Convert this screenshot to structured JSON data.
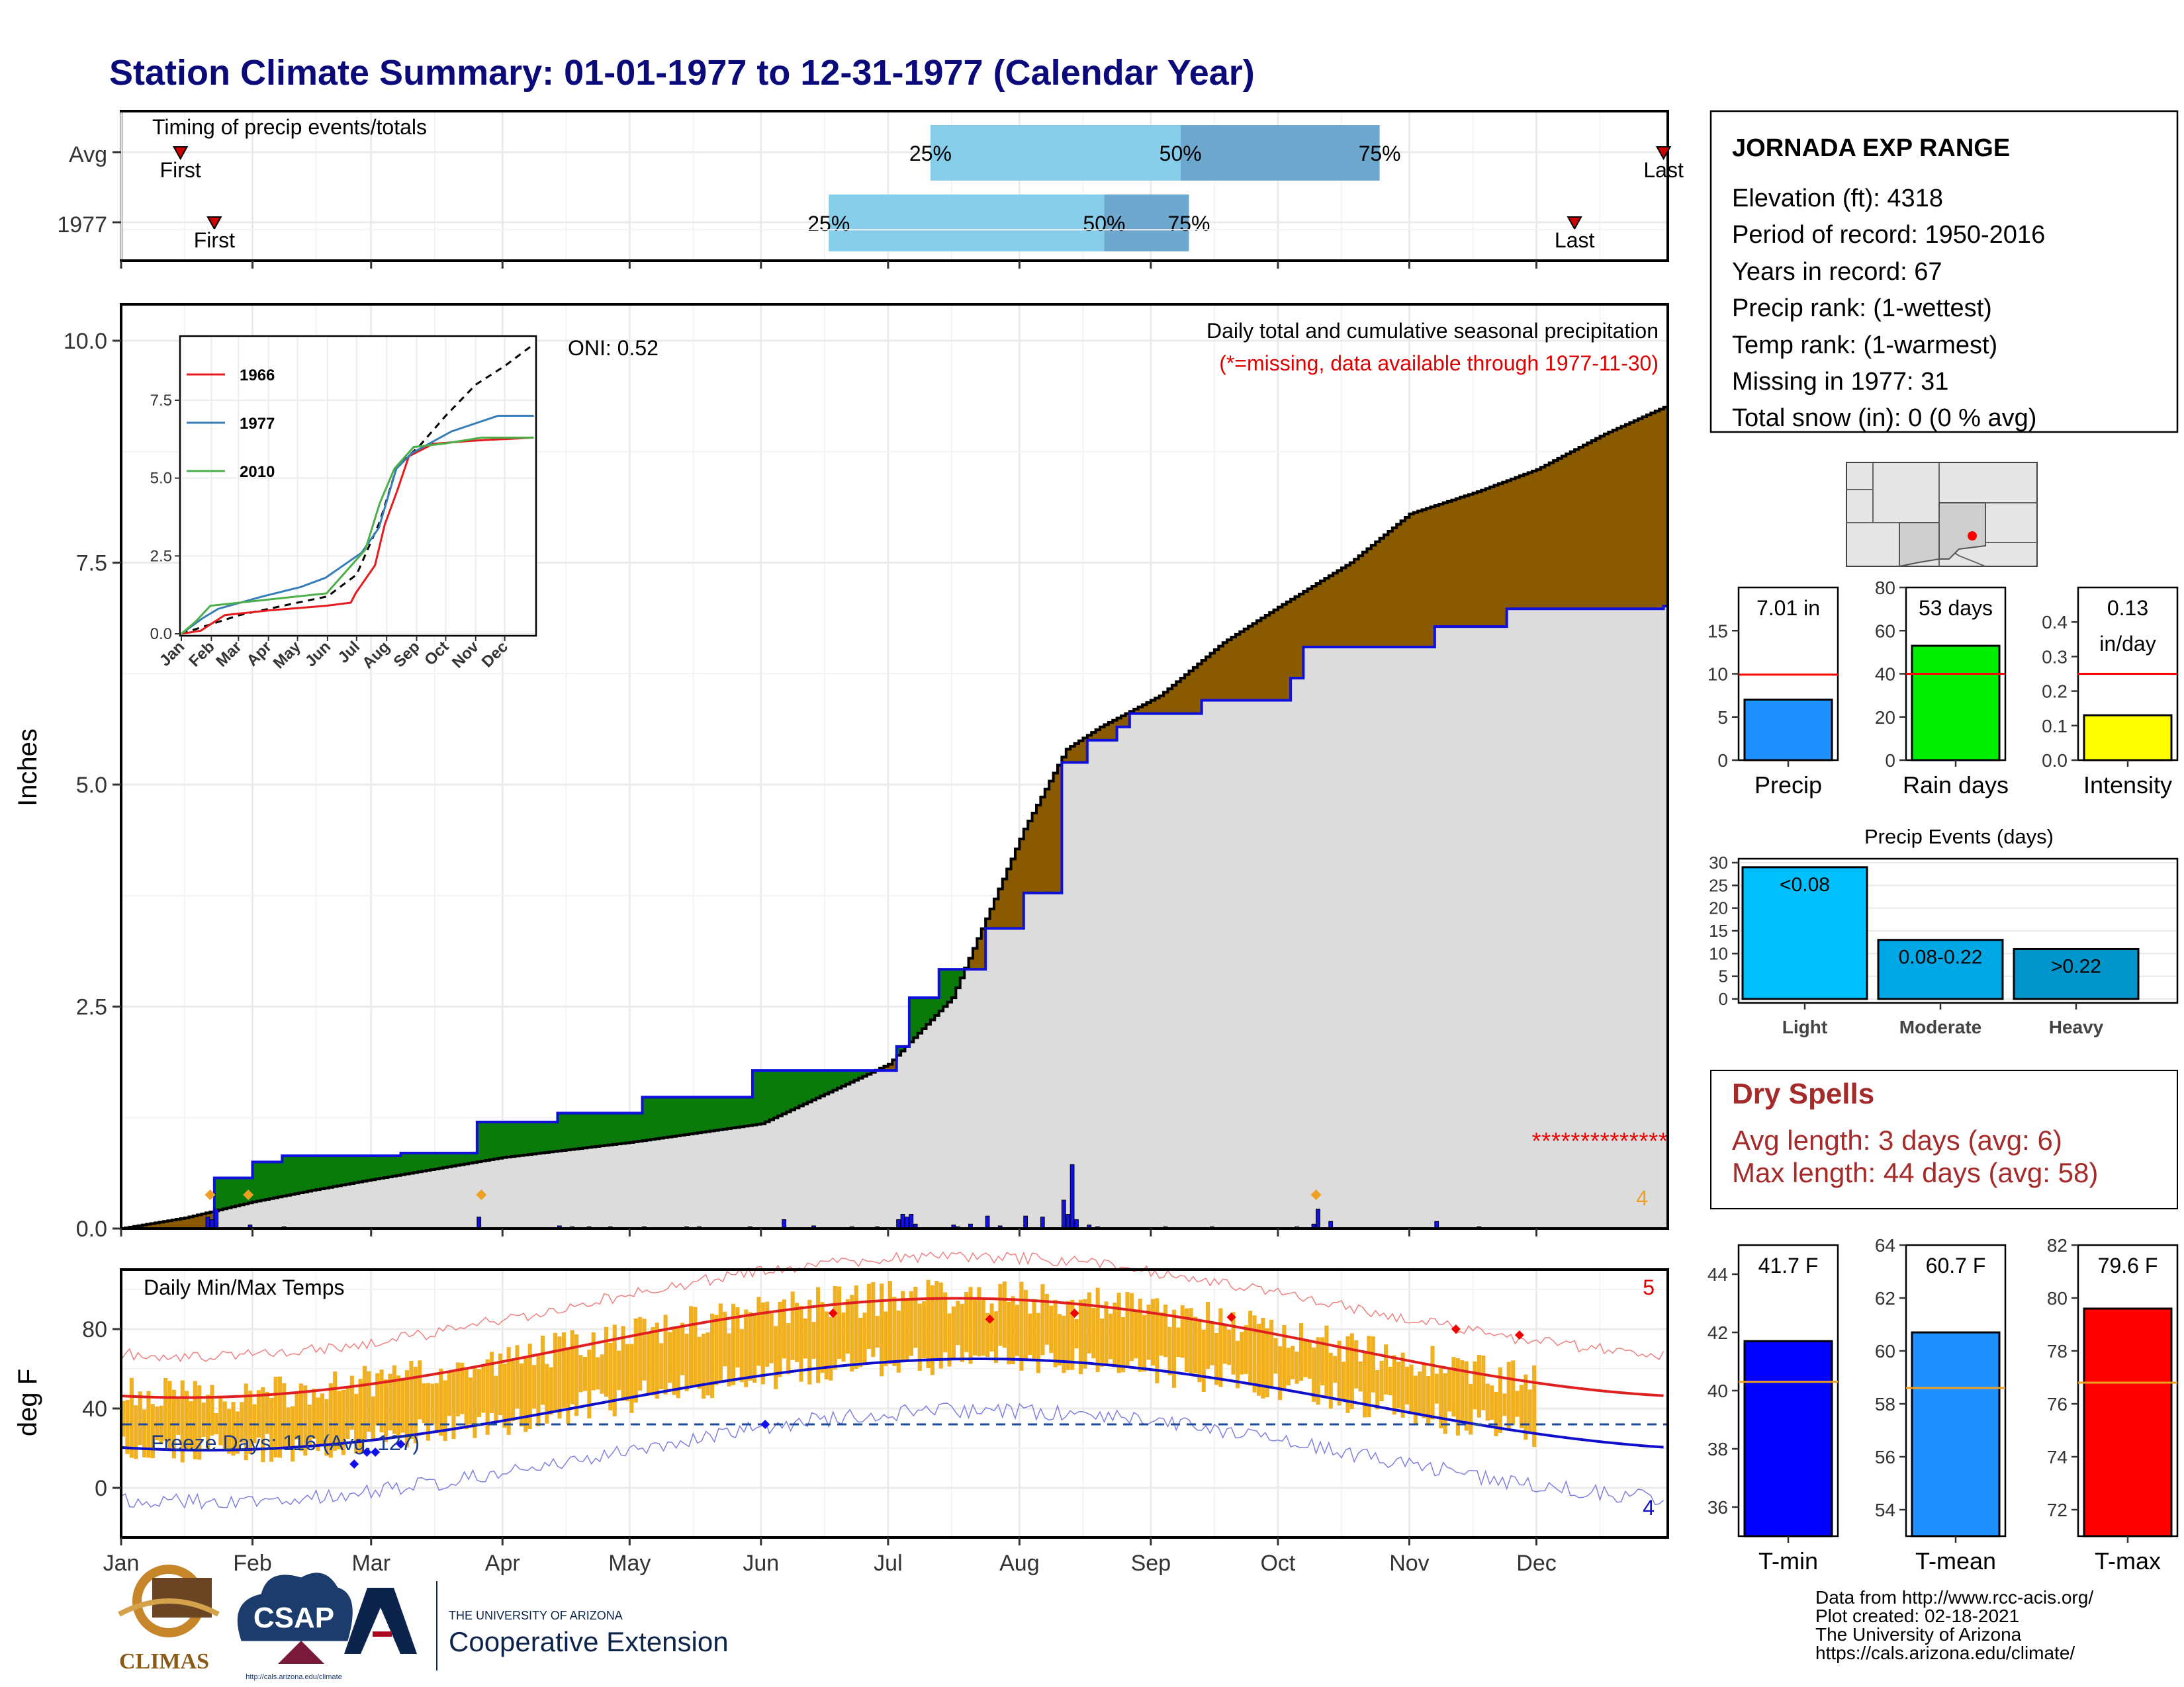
{
  "title": "Station Climate Summary: 01-01-1977 to 12-31-1977 (Calendar Year)",
  "colors": {
    "title": "#0a0a7a",
    "precip_surplus": "#0a7a0a",
    "precip_deficit": "#8a5a00",
    "avg_fill": "#dcdcdc",
    "year_line": "#1010dd",
    "tmax": "#e02020",
    "tmin": "#1010cc",
    "bars_gold": "#f0b020",
    "quartile_light": "#87ceeb",
    "quartile_dark": "#6ea8cf",
    "dry_spell": "#a52a2a",
    "precip_bar": "#1e90ff",
    "raindays_bar": "#00ee00",
    "intensity_bar": "#ffff00",
    "events_bar": "#00bfff",
    "tmin_bar": "#0000ff",
    "tmean_bar": "#1e90ff",
    "tmax_bar": "#ff0000",
    "avg_line": "#ff0000",
    "temp_avg_line": "#f0a020"
  },
  "timing": {
    "label": "Timing of precip events/totals",
    "row_labels": [
      "Avg",
      "1977"
    ],
    "first_label": "First",
    "last_label": "Last",
    "quartile_labels": [
      "25%",
      "50%",
      "75%"
    ],
    "avg": {
      "first_day": 14,
      "q25": 191,
      "q50": 250,
      "q75": 297,
      "last_day": 364
    },
    "year": {
      "first_day": 22,
      "q25": 167,
      "q50": 232,
      "q75": 252,
      "last_day": 343
    }
  },
  "chart_data": [
    {
      "type": "area",
      "name": "precip",
      "ylabel": "Inches",
      "ylim": [
        0,
        10
      ],
      "yticks": [
        "0.0",
        "2.5",
        "5.0",
        "7.5",
        "10.0"
      ],
      "annotation_title": "Daily total and cumulative seasonal precipitation",
      "annotation_missing": "(*=missing, data available through 1977-11-30)",
      "oni": "ONI: 0.52",
      "event_count": "4",
      "avg_cumulative": [
        [
          0,
          0
        ],
        [
          15,
          0.12
        ],
        [
          31,
          0.3
        ],
        [
          45,
          0.43
        ],
        [
          59,
          0.55
        ],
        [
          90,
          0.8
        ],
        [
          120,
          0.97
        ],
        [
          151,
          1.18
        ],
        [
          181,
          1.85
        ],
        [
          196,
          2.6
        ],
        [
          205,
          3.6
        ],
        [
          213,
          4.5
        ],
        [
          223,
          5.4
        ],
        [
          231,
          5.65
        ],
        [
          245,
          6.0
        ],
        [
          260,
          6.6
        ],
        [
          273,
          7.0
        ],
        [
          290,
          7.5
        ],
        [
          304,
          8.05
        ],
        [
          320,
          8.3
        ],
        [
          334,
          8.55
        ],
        [
          350,
          8.95
        ],
        [
          364,
          9.25
        ]
      ],
      "year_cumulative": [
        [
          0,
          0
        ],
        [
          22,
          0.35
        ],
        [
          22,
          0.57
        ],
        [
          31,
          0.57
        ],
        [
          31,
          0.75
        ],
        [
          38,
          0.75
        ],
        [
          38,
          0.82
        ],
        [
          66,
          0.82
        ],
        [
          66,
          0.85
        ],
        [
          84,
          0.85
        ],
        [
          84,
          1.2
        ],
        [
          103,
          1.2
        ],
        [
          103,
          1.3
        ],
        [
          123,
          1.3
        ],
        [
          123,
          1.48
        ],
        [
          149,
          1.48
        ],
        [
          149,
          1.78
        ],
        [
          183,
          1.78
        ],
        [
          183,
          2.05
        ],
        [
          186,
          2.05
        ],
        [
          186,
          2.6
        ],
        [
          193,
          2.6
        ],
        [
          193,
          2.92
        ],
        [
          204,
          2.92
        ],
        [
          204,
          3.38
        ],
        [
          213,
          3.38
        ],
        [
          213,
          3.78
        ],
        [
          222,
          3.78
        ],
        [
          222,
          5.25
        ],
        [
          228,
          5.25
        ],
        [
          228,
          5.5
        ],
        [
          235,
          5.5
        ],
        [
          235,
          5.65
        ],
        [
          238,
          5.65
        ],
        [
          238,
          5.8
        ],
        [
          255,
          5.8
        ],
        [
          255,
          5.95
        ],
        [
          276,
          5.95
        ],
        [
          276,
          6.2
        ],
        [
          279,
          6.2
        ],
        [
          279,
          6.55
        ],
        [
          310,
          6.55
        ],
        [
          310,
          6.78
        ],
        [
          327,
          6.78
        ],
        [
          327,
          6.98
        ],
        [
          364,
          7.01
        ]
      ],
      "daily_precip_days": [
        20,
        21,
        22,
        30,
        38,
        84,
        103,
        106,
        110,
        115,
        123,
        133,
        136,
        148,
        156,
        163,
        172,
        178,
        183,
        184,
        185,
        186,
        187,
        196,
        197,
        200,
        204,
        207,
        213,
        217,
        222,
        223,
        224,
        225,
        228,
        230,
        246,
        257,
        277,
        281,
        282,
        285,
        310,
        320
      ],
      "daily_precip_vals": [
        0.13,
        0.1,
        0.22,
        0.04,
        0.02,
        0.13,
        0.03,
        0.02,
        0.02,
        0.02,
        0.02,
        0.02,
        0.02,
        0.02,
        0.1,
        0.03,
        0.02,
        0.02,
        0.1,
        0.16,
        0.13,
        0.16,
        0.05,
        0.04,
        0.02,
        0.05,
        0.14,
        0.03,
        0.14,
        0.13,
        0.32,
        0.16,
        0.72,
        0.1,
        0.04,
        0.02,
        0.02,
        0.02,
        0.02,
        0.05,
        0.22,
        0.08,
        0.08,
        0.02
      ],
      "event_markers": [
        21,
        30,
        85,
        282
      ],
      "missing_start": 334,
      "missing_value": 1.0
    },
    {
      "type": "line",
      "name": "inset-cumulative",
      "series": [
        {
          "name": "1966",
          "color": "#e41a1c"
        },
        {
          "name": "1977",
          "color": "#377eb8"
        },
        {
          "name": "2010",
          "color": "#4daf4a"
        }
      ],
      "yticks": [
        "0.0",
        "2.5",
        "5.0",
        "7.5"
      ],
      "months": [
        "Jan",
        "Feb",
        "Mar",
        "Apr",
        "May",
        "Jun",
        "Jul",
        "Aug",
        "Sep",
        "Oct",
        "Nov",
        "Dec"
      ]
    },
    {
      "type": "bar",
      "name": "daily-temps",
      "label": "Daily Min/Max Temps",
      "ylabel": "deg F",
      "yticks": [
        "0",
        "40",
        "80"
      ],
      "ylim": [
        -25,
        110
      ],
      "freeze_label": "Freeze Days: 116 (Avg: 127)",
      "freeze_line": 32,
      "record_high_count": "5",
      "record_low_count": "4",
      "months": [
        "Jan",
        "Feb",
        "Mar",
        "Apr",
        "May",
        "Jun",
        "Jul",
        "Aug",
        "Sep",
        "Oct",
        "Nov",
        "Dec"
      ]
    },
    {
      "type": "bar",
      "name": "precip-summary",
      "value_label": "7.01 in",
      "value": 7.01,
      "avg": 9.9,
      "ylim": [
        0,
        20
      ],
      "yticks": [
        "0",
        "5",
        "10",
        "15"
      ],
      "xlabel": "Precip"
    },
    {
      "type": "bar",
      "name": "raindays-summary",
      "value_label": "53 days",
      "value": 53,
      "avg": 40,
      "ylim": [
        0,
        80
      ],
      "yticks": [
        "0",
        "20",
        "40",
        "60",
        "80"
      ],
      "xlabel": "Rain days"
    },
    {
      "type": "bar",
      "name": "intensity-summary",
      "value_label": "0.13 in/day",
      "value_label_1": "0.13",
      "value_label_2": "in/day",
      "value": 0.13,
      "avg": 0.25,
      "ylim": [
        0,
        0.5
      ],
      "yticks": [
        "0.0",
        "0.1",
        "0.2",
        "0.3",
        "0.4"
      ],
      "xlabel": "Intensity"
    },
    {
      "type": "bar",
      "name": "precip-events",
      "title": "Precip Events (days)",
      "categories": [
        "Light",
        "Moderate",
        "Heavy"
      ],
      "bar_labels": [
        "<0.08",
        "0.08-0.22",
        ">0.22"
      ],
      "values": [
        29,
        13,
        11
      ],
      "ylim": [
        0,
        30
      ],
      "yticks": [
        "0",
        "5",
        "10",
        "15",
        "20",
        "25",
        "30"
      ]
    },
    {
      "type": "bar",
      "name": "tmin-summary",
      "value_label": "41.7 F",
      "value": 41.7,
      "avg": 40.3,
      "ylim": [
        35,
        45
      ],
      "yticks": [
        "36",
        "38",
        "40",
        "42",
        "44"
      ],
      "xlabel": "T-min"
    },
    {
      "type": "bar",
      "name": "tmean-summary",
      "value_label": "60.7 F",
      "value": 60.7,
      "avg": 58.6,
      "ylim": [
        53,
        64
      ],
      "yticks": [
        "54",
        "56",
        "58",
        "60",
        "62",
        "64"
      ],
      "xlabel": "T-mean"
    },
    {
      "type": "bar",
      "name": "tmax-summary",
      "value_label": "79.6 F",
      "value": 79.6,
      "avg": 76.8,
      "ylim": [
        71,
        82
      ],
      "yticks": [
        "72",
        "74",
        "76",
        "78",
        "80",
        "82"
      ],
      "xlabel": "T-max"
    }
  ],
  "station": {
    "name": "JORNADA EXP RANGE",
    "lines": [
      "Elevation (ft): 4318",
      "Period of record: 1950-2016",
      "Years in record: 67",
      "Precip rank:  (1-wettest)",
      "Temp rank:  (1-warmest)",
      "Missing in 1977: 31",
      "Total snow (in): 0 (0 % avg)"
    ]
  },
  "dry_spells": {
    "title": "Dry Spells",
    "avg_length": "Avg length: 3 days (avg: 6)",
    "max_length": "Max length: 44 days (avg: 58)"
  },
  "footer": {
    "credits": [
      "Data from http://www.rcc-acis.org/",
      "Plot created: 02-18-2021",
      "The University of Arizona",
      "https://cals.arizona.edu/climate/"
    ],
    "climas": "CLIMAS",
    "csap": "CSAP",
    "csap_url": "http://cals.arizona.edu/climate",
    "ua_small": "THE UNIVERSITY OF ARIZONA",
    "ua_big": "Cooperative Extension"
  }
}
